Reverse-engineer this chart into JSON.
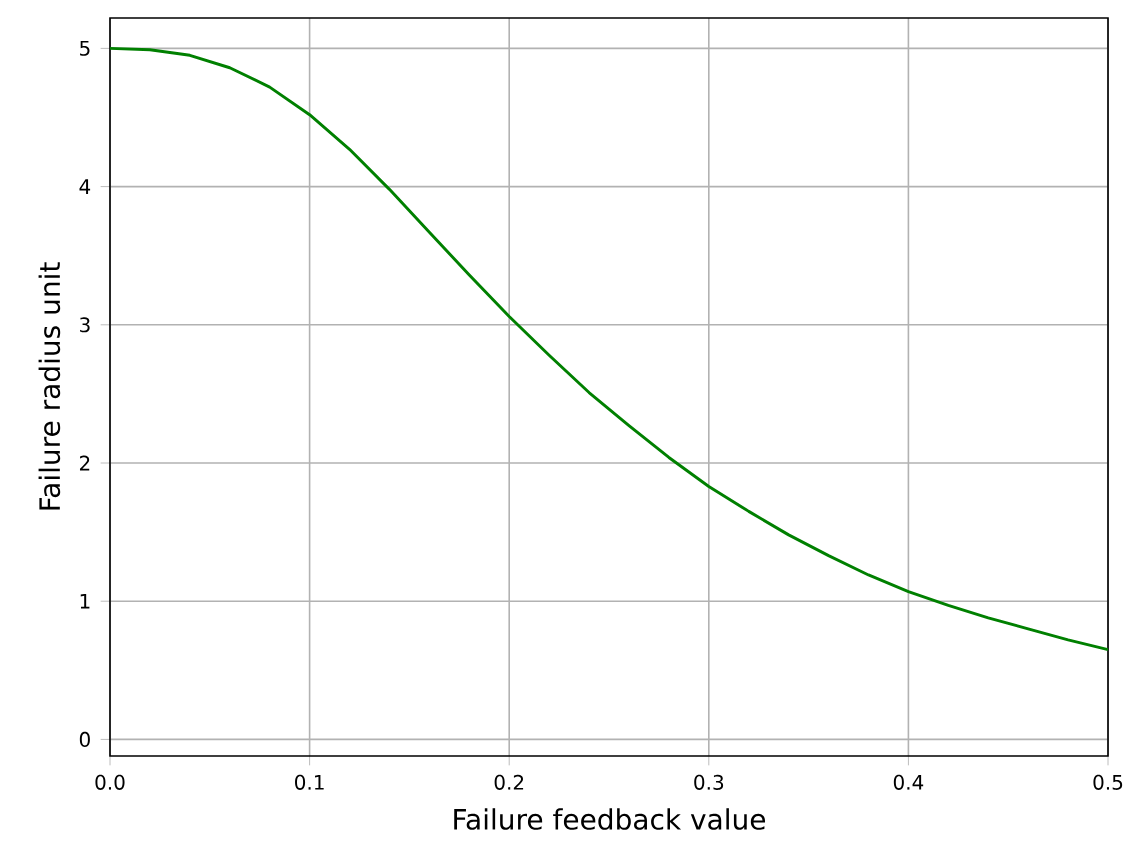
{
  "chart_data": {
    "type": "line",
    "xlabel": "Failure feedback value",
    "ylabel": "Failure radius unit",
    "x": [
      0,
      0.02,
      0.04,
      0.06,
      0.08,
      0.1,
      0.12,
      0.14,
      0.16,
      0.18,
      0.2,
      0.22,
      0.24,
      0.26,
      0.28,
      0.3,
      0.32,
      0.34,
      0.36,
      0.38,
      0.4,
      0.42,
      0.44,
      0.46,
      0.48,
      0.5
    ],
    "series": [
      {
        "color": "#008000",
        "values": [
          5.0,
          4.99,
          4.95,
          4.86,
          4.72,
          4.52,
          4.27,
          3.98,
          3.67,
          3.36,
          3.06,
          2.78,
          2.51,
          2.27,
          2.04,
          1.83,
          1.65,
          1.48,
          1.33,
          1.19,
          1.07,
          0.97,
          0.88,
          0.8,
          0.72,
          0.65
        ]
      }
    ],
    "xlim": [
      0,
      0.5
    ],
    "ylim": [
      -0.12,
      5.22
    ],
    "xticks": [
      {
        "value": 0,
        "label": "0.0"
      },
      {
        "value": 0.1,
        "label": "0.1"
      },
      {
        "value": 0.2,
        "label": "0.2"
      },
      {
        "value": 0.3,
        "label": "0.3"
      },
      {
        "value": 0.4,
        "label": "0.4"
      },
      {
        "value": 0.5,
        "label": "0.5"
      }
    ],
    "yticks": [
      0,
      1,
      2,
      3,
      4,
      5
    ],
    "grid": true,
    "marker": "none",
    "line_style": "solid"
  }
}
